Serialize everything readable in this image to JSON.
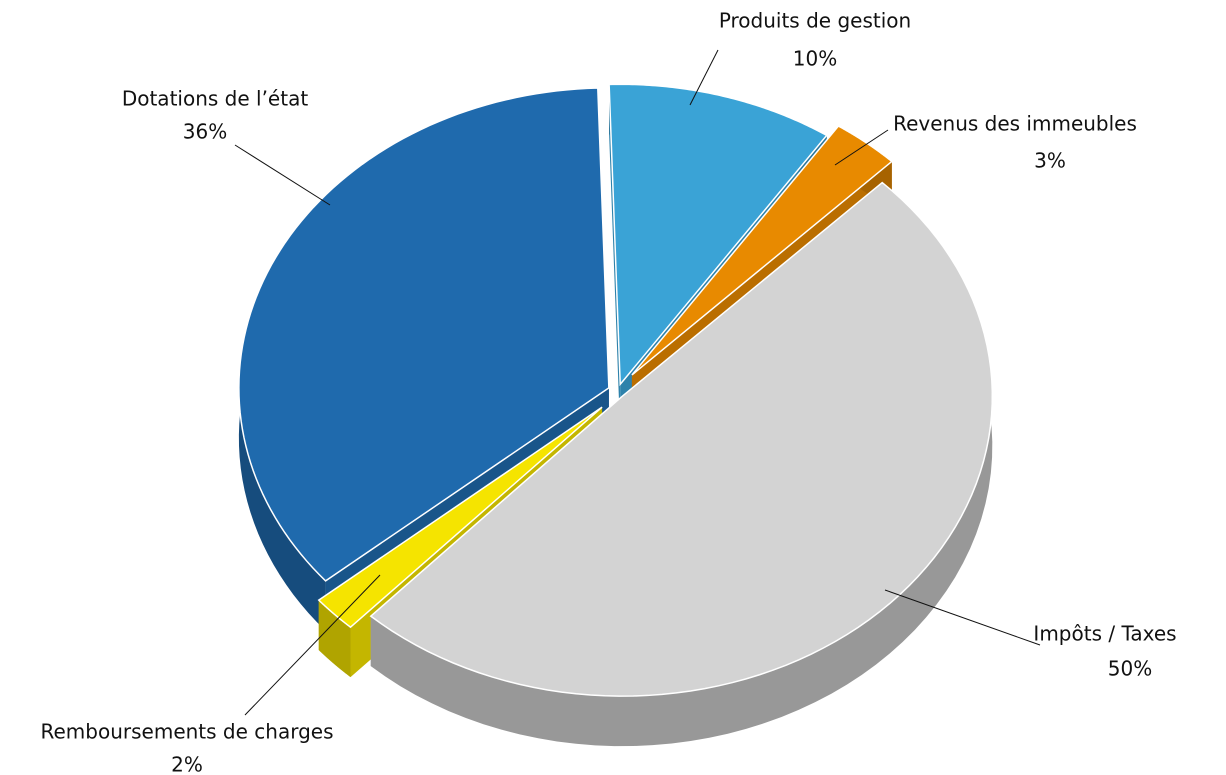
{
  "chart_data": {
    "type": "pie",
    "categories": [
      "Produits de gestion",
      "Revenus des immeubles",
      "Impôts / Taxes",
      "Remboursements de charges",
      "Dotations de l’état"
    ],
    "values": [
      10,
      3,
      50,
      2,
      36
    ],
    "value_labels": [
      "10%",
      "3%",
      "50%",
      "2%",
      "36%"
    ],
    "colors": [
      "#3aa3d6",
      "#e88a00",
      "#d3d3d3",
      "#f5e400",
      "#1f6aad"
    ]
  }
}
